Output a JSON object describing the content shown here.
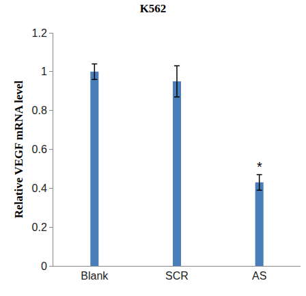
{
  "chart_data": {
    "type": "bar",
    "title": "K562",
    "y_label": "Relative VEGF mRNA level",
    "categories": [
      "Blank",
      "SCR",
      "AS"
    ],
    "values": [
      1.0,
      0.95,
      0.43
    ],
    "error": [
      0.04,
      0.08,
      0.04
    ],
    "color": "#4a7ebb",
    "ylim": [
      0,
      1.2
    ],
    "yticks": [
      0,
      0.2,
      0.4,
      0.6,
      0.8,
      1,
      1.2
    ],
    "grid": false,
    "annotations": [
      {
        "text": "*",
        "category": "AS"
      }
    ]
  }
}
